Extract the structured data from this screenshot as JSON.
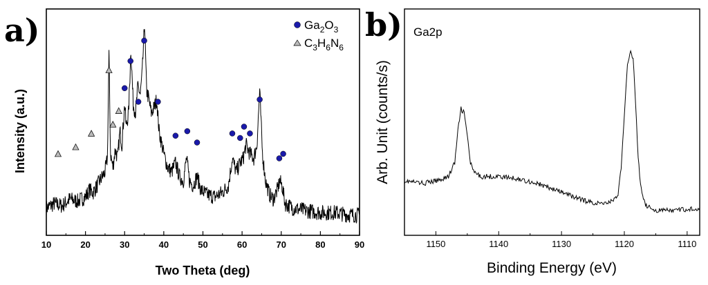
{
  "figure": {
    "panel_a_label": "a)",
    "panel_b_label": "b)"
  },
  "chart_data": [
    {
      "type": "line",
      "panel": "a)",
      "title": "",
      "xlabel": "Two Theta (deg)",
      "ylabel": "Intensity (a.u.)",
      "xlim": [
        10,
        90
      ],
      "ylim": [
        0,
        100
      ],
      "x_ticks": [
        10,
        20,
        30,
        40,
        50,
        60,
        70,
        80,
        90
      ],
      "y_ticks_shown": false,
      "series": [
        {
          "points": [
            [
              10,
              12
            ],
            [
              12,
              14
            ],
            [
              14,
              13
            ],
            [
              16,
              16
            ],
            [
              18,
              15
            ],
            [
              20,
              17
            ],
            [
              21,
              20
            ],
            [
              22,
              19
            ],
            [
              23,
              22
            ],
            [
              24,
              25
            ],
            [
              25,
              28
            ],
            [
              25.6,
              34
            ],
            [
              26,
              80
            ],
            [
              26.4,
              36
            ],
            [
              27,
              30
            ],
            [
              27.6,
              38
            ],
            [
              28.2,
              34
            ],
            [
              28.8,
              46
            ],
            [
              29.3,
              40
            ],
            [
              30,
              58
            ],
            [
              30.4,
              48
            ],
            [
              31,
              54
            ],
            [
              31.6,
              82
            ],
            [
              32.2,
              58
            ],
            [
              32.8,
              54
            ],
            [
              33.4,
              66
            ],
            [
              34,
              62
            ],
            [
              34.5,
              72
            ],
            [
              35.1,
              94
            ],
            [
              35.6,
              64
            ],
            [
              36.2,
              60
            ],
            [
              36.8,
              54
            ],
            [
              37.4,
              56
            ],
            [
              38.2,
              60
            ],
            [
              38.8,
              46
            ],
            [
              40,
              36
            ],
            [
              41,
              30
            ],
            [
              42,
              28
            ],
            [
              43,
              32
            ],
            [
              44,
              26
            ],
            [
              45,
              24
            ],
            [
              45.8,
              34
            ],
            [
              46.6,
              24
            ],
            [
              47.5,
              22
            ],
            [
              48.5,
              26
            ],
            [
              49.5,
              20
            ],
            [
              51,
              18
            ],
            [
              53,
              17
            ],
            [
              55,
              19
            ],
            [
              56.5,
              22
            ],
            [
              57.5,
              34
            ],
            [
              58.5,
              28
            ],
            [
              59.5,
              32
            ],
            [
              60.3,
              34
            ],
            [
              61,
              40
            ],
            [
              62,
              36
            ],
            [
              63,
              34
            ],
            [
              63.8,
              40
            ],
            [
              64.5,
              64
            ],
            [
              65.2,
              36
            ],
            [
              66,
              24
            ],
            [
              67,
              18
            ],
            [
              68,
              16
            ],
            [
              69,
              20
            ],
            [
              69.6,
              24
            ],
            [
              70.2,
              22
            ],
            [
              71,
              14
            ],
            [
              73,
              12
            ],
            [
              76,
              11
            ],
            [
              80,
              10
            ],
            [
              84,
              10
            ],
            [
              87,
              9
            ],
            [
              90,
              9
            ]
          ]
        }
      ],
      "markers": [
        {
          "series": "Ga2O3",
          "shape": "circle",
          "color": "#1a1aaa",
          "points": [
            [
              30,
              65
            ],
            [
              31.5,
              77
            ],
            [
              33.5,
              59
            ],
            [
              35,
              86
            ],
            [
              38.5,
              59
            ],
            [
              43,
              44
            ],
            [
              46,
              46
            ],
            [
              48.5,
              41
            ],
            [
              57.5,
              45
            ],
            [
              59.5,
              43
            ],
            [
              60.5,
              48
            ],
            [
              62,
              45
            ],
            [
              64.5,
              60
            ],
            [
              69.5,
              34
            ],
            [
              70.5,
              36
            ]
          ]
        },
        {
          "series": "C3H6N6",
          "shape": "triangle",
          "color": "#bbbbbb",
          "points": [
            [
              13,
              36
            ],
            [
              17.5,
              39
            ],
            [
              21.5,
              45
            ],
            [
              26,
              73
            ],
            [
              27,
              49
            ],
            [
              28.5,
              55
            ]
          ]
        }
      ],
      "legend": {
        "placement": "top-right",
        "entries": [
          {
            "label": "Ga",
            "sub1": "2",
            "mid": "O",
            "sub2": "3",
            "tail": ""
          },
          {
            "label": "C",
            "sub1": "3",
            "mid": "H",
            "sub2": "6",
            "tail": "N",
            "sub3": "6"
          }
        ]
      }
    },
    {
      "type": "line",
      "panel": "b)",
      "title": "",
      "annotation": "Ga2p",
      "xlabel": "Binding Energy (eV)",
      "ylabel": "Arb. Unit (counts/s)",
      "xlim": [
        1155,
        1108
      ],
      "reversed_x": true,
      "ylim": [
        0,
        100
      ],
      "x_ticks": [
        1150,
        1140,
        1130,
        1120,
        1110
      ],
      "y_ticks_shown": false,
      "series": [
        {
          "points": [
            [
              1155,
              24
            ],
            [
              1152,
              23
            ],
            [
              1150,
              24
            ],
            [
              1148,
              26
            ],
            [
              1147,
              32
            ],
            [
              1146.5,
              46
            ],
            [
              1146,
              56
            ],
            [
              1145.5,
              54
            ],
            [
              1145,
              44
            ],
            [
              1144.5,
              32
            ],
            [
              1144,
              28
            ],
            [
              1143,
              26
            ],
            [
              1140,
              26
            ],
            [
              1137,
              25
            ],
            [
              1134,
              23
            ],
            [
              1131,
              20
            ],
            [
              1128,
              17
            ],
            [
              1126,
              15
            ],
            [
              1124,
              14
            ],
            [
              1122,
              15
            ],
            [
              1121,
              18
            ],
            [
              1120.5,
              30
            ],
            [
              1120,
              52
            ],
            [
              1119.5,
              76
            ],
            [
              1119,
              82
            ],
            [
              1118.6,
              78
            ],
            [
              1118.2,
              58
            ],
            [
              1117.8,
              34
            ],
            [
              1117.3,
              20
            ],
            [
              1116.5,
              13
            ],
            [
              1115,
              11
            ],
            [
              1112,
              11
            ],
            [
              1108,
              12
            ]
          ]
        }
      ]
    }
  ]
}
